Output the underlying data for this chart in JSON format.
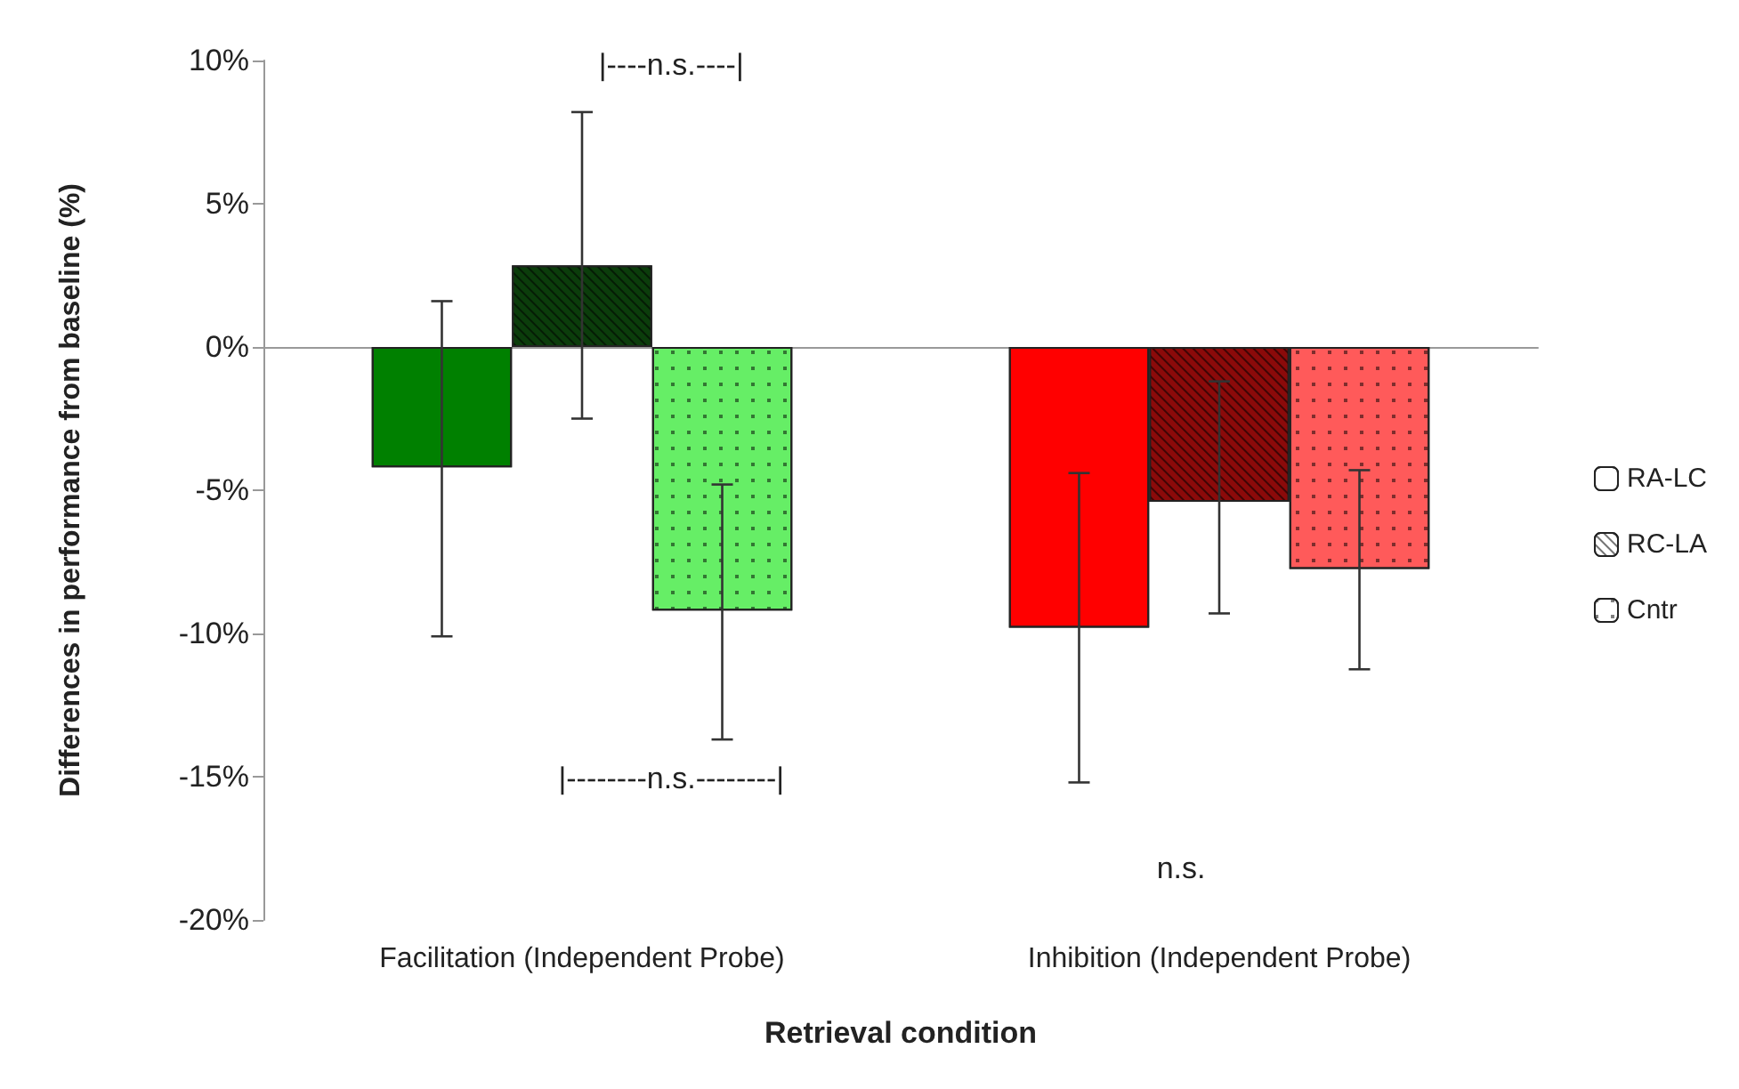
{
  "chart_data": {
    "type": "bar",
    "xlabel": "Retrieval condition",
    "ylabel": "Differences in performance from baseline (%)",
    "categories": [
      "Facilitation (Independent Probe)",
      "Inhibition (Independent Probe)"
    ],
    "series": [
      {
        "name": "RA-LC",
        "colors": [
          "#008000",
          "#ff0000"
        ],
        "values": [
          -4.2,
          -9.8
        ],
        "errors": [
          [
            -10.1,
            1.6
          ],
          [
            -15.2,
            -4.4
          ]
        ]
      },
      {
        "name": "RC-LA",
        "colors": [
          "#0b3d0b",
          "#8b0a0a"
        ],
        "values": [
          2.85,
          -5.4
        ],
        "errors": [
          [
            -2.5,
            8.2
          ],
          [
            -9.3,
            -1.2
          ]
        ]
      },
      {
        "name": "Cntr",
        "colors": [
          "#66ee66",
          "#ff5a5a"
        ],
        "values": [
          -9.2,
          -7.75
        ],
        "errors": [
          [
            -13.7,
            -4.8
          ],
          [
            -11.25,
            -4.3
          ]
        ]
      }
    ],
    "ylim": [
      -20,
      10
    ],
    "yticks": [
      {
        "value": -20,
        "label": "-20%"
      },
      {
        "value": -15,
        "label": "-15%"
      },
      {
        "value": -10,
        "label": "-10%"
      },
      {
        "value": -5,
        "label": "-5%"
      },
      {
        "value": 0,
        "label": "0%"
      },
      {
        "value": 5,
        "label": "5%"
      },
      {
        "value": 10,
        "label": "10%"
      }
    ],
    "legend": "right",
    "annotations": [
      "|----n.s.----|",
      "|--------n.s.--------|",
      "n.s."
    ]
  }
}
